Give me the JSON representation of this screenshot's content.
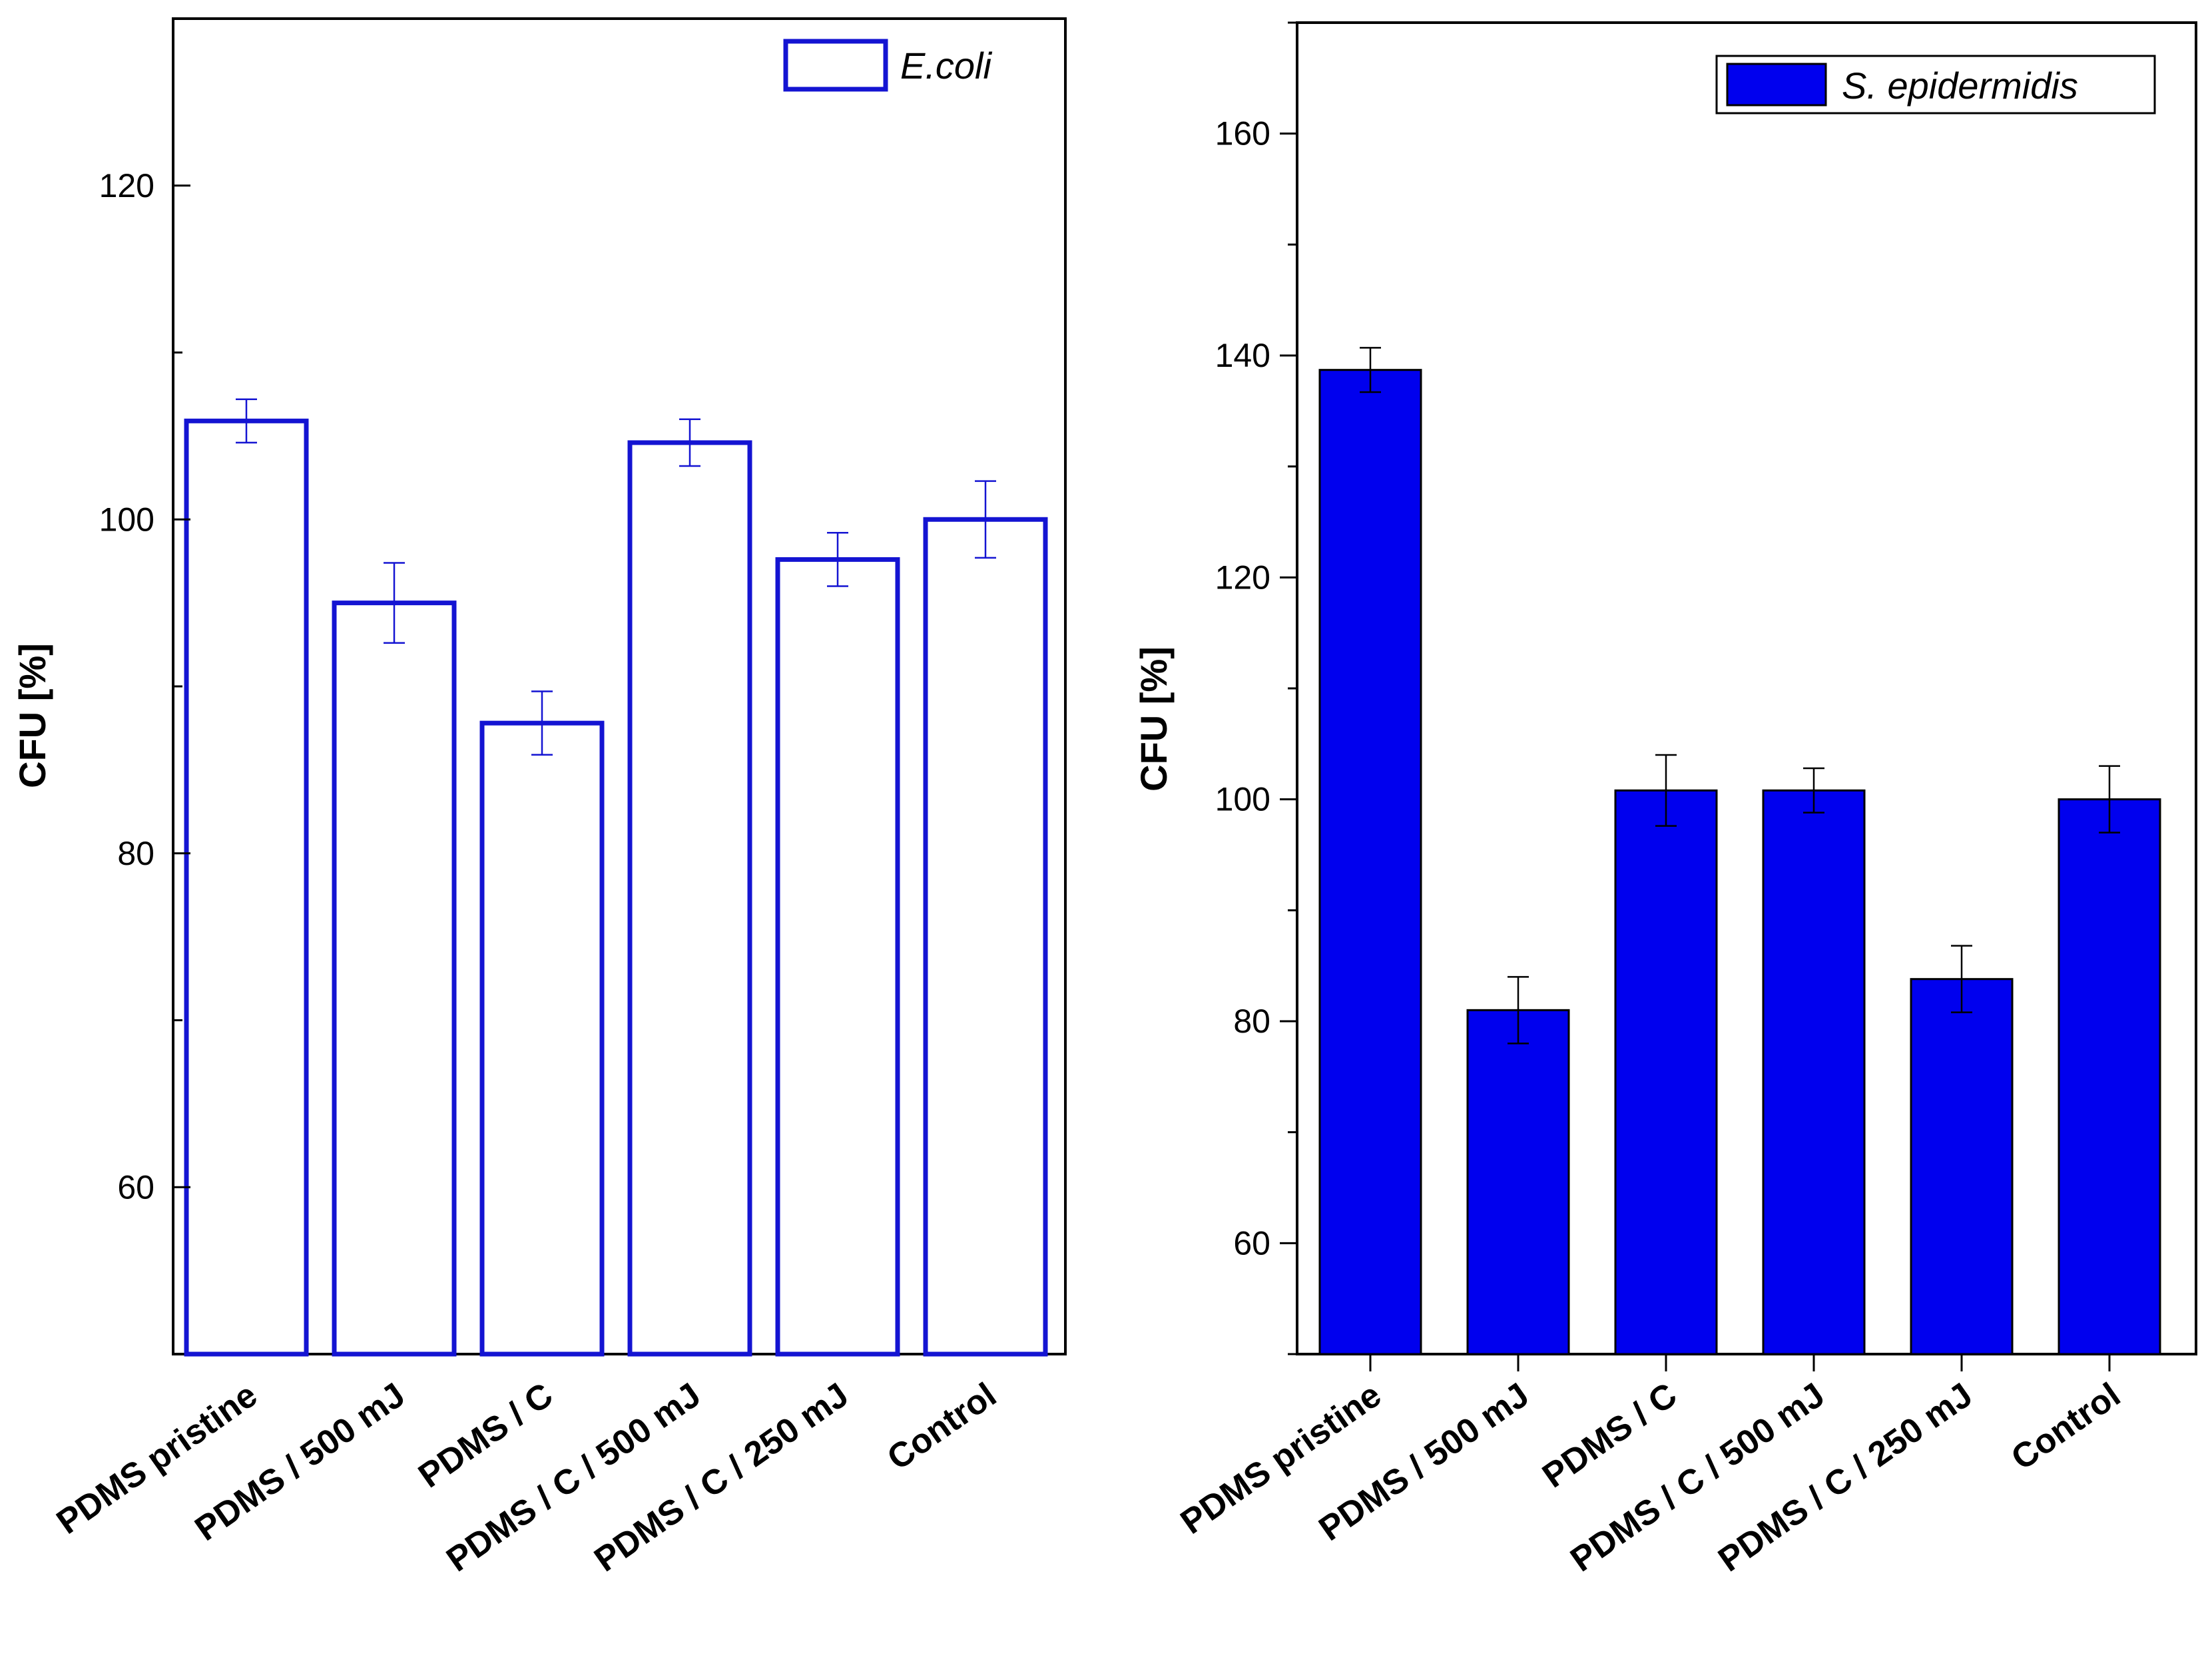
{
  "chart_data": [
    {
      "type": "bar",
      "style": "outline",
      "title": "",
      "xlabel": "",
      "ylabel": "CFU [%]",
      "ylim": [
        50,
        130
      ],
      "yticks": [
        60,
        80,
        100,
        120
      ],
      "grid": false,
      "legend": {
        "label": "E.coli",
        "position": "top-right"
      },
      "color": "#1414d2",
      "categories": [
        "PDMS pristine",
        "PDMS / 500 mJ",
        "PDMS / C",
        "PDMS / C / 500 mJ",
        "PDMS / C / 250 mJ",
        "Control"
      ],
      "series": [
        {
          "name": "E.coli",
          "values": [
            105.9,
            95.0,
            87.8,
            104.6,
            97.6,
            100.0
          ],
          "errors": [
            1.3,
            2.4,
            1.9,
            1.4,
            1.6,
            2.3
          ]
        }
      ]
    },
    {
      "type": "bar",
      "style": "filled",
      "title": "",
      "xlabel": "",
      "ylabel": "CFU [%]",
      "ylim": [
        50,
        170
      ],
      "yticks": [
        60,
        80,
        100,
        120,
        140,
        160
      ],
      "grid": false,
      "legend": {
        "label": "S. epidermidis",
        "position": "top-right"
      },
      "color": "#0000ee",
      "categories": [
        "PDMS pristine",
        "PDMS / 500 mJ",
        "PDMS / C",
        "PDMS / C / 500 mJ",
        "PDMS / C / 250 mJ",
        "Control"
      ],
      "series": [
        {
          "name": "S. epidermidis",
          "values": [
            138.7,
            81.0,
            100.8,
            100.8,
            83.8,
            100.0
          ],
          "errors": [
            2.0,
            3.0,
            3.2,
            2.0,
            3.0,
            3.0
          ]
        }
      ]
    }
  ]
}
